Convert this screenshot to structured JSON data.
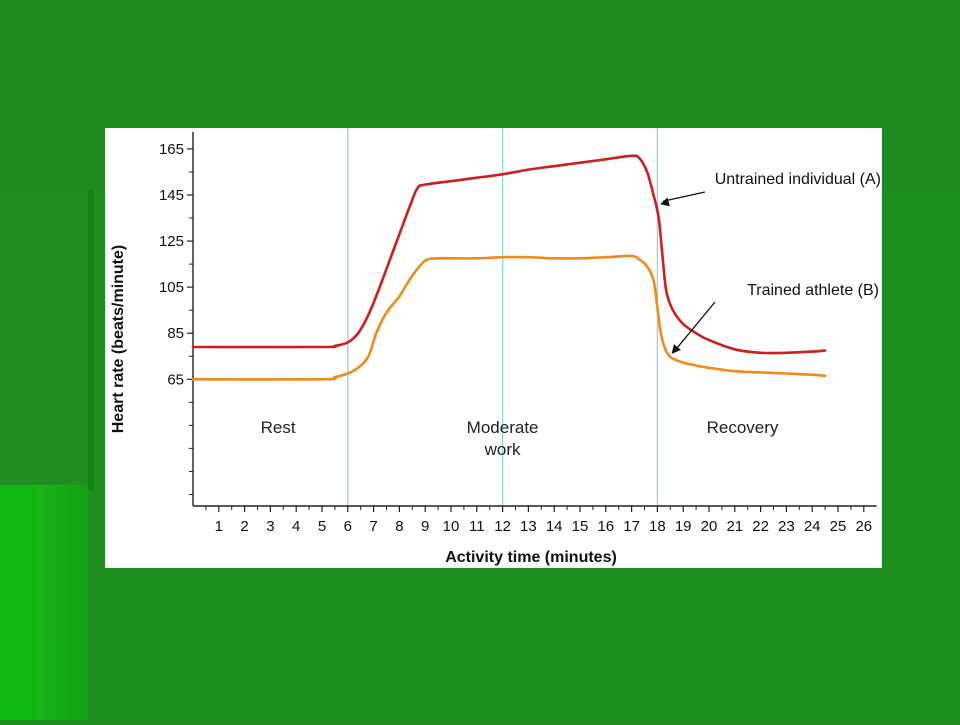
{
  "theme": {
    "slide_background": "#1f8d1f",
    "slide_light_green": "#19b319",
    "line_untrained_color": "#cc1f1f",
    "line_trained_color": "#f28a1a",
    "divider_color": "#8fd3e8"
  },
  "chart_data": {
    "type": "line",
    "xlabel": "Activity time (minutes)",
    "ylabel": "Heart rate (beats/minute)",
    "x_ticks": [
      1,
      2,
      3,
      4,
      5,
      6,
      7,
      8,
      9,
      10,
      11,
      12,
      13,
      14,
      15,
      16,
      17,
      18,
      19,
      20,
      21,
      22,
      23,
      24,
      25,
      26
    ],
    "y_ticks": [
      65,
      85,
      105,
      125,
      145,
      165
    ],
    "xlim": [
      0,
      26.5
    ],
    "ylim": [
      10,
      168
    ],
    "phase_dividers": [
      6,
      12,
      18
    ],
    "regions": [
      {
        "lines": [
          "Rest"
        ],
        "x": 3.3
      },
      {
        "lines": [
          "Moderate",
          "work"
        ],
        "x": 12
      },
      {
        "lines": [
          "Recovery"
        ],
        "x": 21.3
      }
    ],
    "series": [
      {
        "name": "Untrained individual (A)",
        "points": [
          [
            0,
            79
          ],
          [
            5.0,
            79
          ],
          [
            5.5,
            79.5
          ],
          [
            6.0,
            81
          ],
          [
            6.4,
            85
          ],
          [
            6.8,
            93
          ],
          [
            7.2,
            104
          ],
          [
            7.6,
            116
          ],
          [
            8.0,
            128
          ],
          [
            8.4,
            140
          ],
          [
            8.7,
            148
          ],
          [
            9.0,
            149.5
          ],
          [
            10,
            151
          ],
          [
            11,
            152.5
          ],
          [
            12,
            154
          ],
          [
            13,
            156
          ],
          [
            14,
            157.5
          ],
          [
            15,
            159
          ],
          [
            16,
            160.5
          ],
          [
            17,
            162
          ],
          [
            17.3,
            161
          ],
          [
            17.6,
            155
          ],
          [
            17.85,
            145
          ],
          [
            18.05,
            135
          ],
          [
            18.2,
            118
          ],
          [
            18.35,
            103
          ],
          [
            18.6,
            95
          ],
          [
            19,
            89
          ],
          [
            19.5,
            85
          ],
          [
            20,
            82
          ],
          [
            21,
            78
          ],
          [
            22,
            76.5
          ],
          [
            23,
            76.5
          ],
          [
            24,
            77
          ],
          [
            24.5,
            77.5
          ]
        ]
      },
      {
        "name": "Trained athlete (B)",
        "points": [
          [
            0,
            65
          ],
          [
            5.0,
            65
          ],
          [
            5.5,
            66
          ],
          [
            6.0,
            67.5
          ],
          [
            6.4,
            70
          ],
          [
            6.8,
            75
          ],
          [
            7.1,
            85
          ],
          [
            7.5,
            94
          ],
          [
            8.0,
            101
          ],
          [
            8.5,
            110
          ],
          [
            9.0,
            116.5
          ],
          [
            9.5,
            117.5
          ],
          [
            10,
            117.5
          ],
          [
            11,
            117.5
          ],
          [
            12,
            118
          ],
          [
            13,
            118
          ],
          [
            14,
            117.5
          ],
          [
            15,
            117.5
          ],
          [
            16,
            118
          ],
          [
            17,
            118.5
          ],
          [
            17.3,
            117
          ],
          [
            17.6,
            114
          ],
          [
            17.85,
            108
          ],
          [
            18.0,
            96
          ],
          [
            18.15,
            84
          ],
          [
            18.4,
            76
          ],
          [
            18.8,
            73
          ],
          [
            19.5,
            71
          ],
          [
            20,
            70
          ],
          [
            21,
            68.5
          ],
          [
            22,
            68
          ],
          [
            23,
            67.5
          ],
          [
            24,
            67
          ],
          [
            24.5,
            66.5
          ]
        ]
      }
    ],
    "annotations": [
      {
        "text": "Untrained individual (A)",
        "target": [
          18.1,
          141
        ]
      },
      {
        "text": "Trained athlete (B)",
        "target": [
          18.55,
          76
        ]
      }
    ]
  }
}
